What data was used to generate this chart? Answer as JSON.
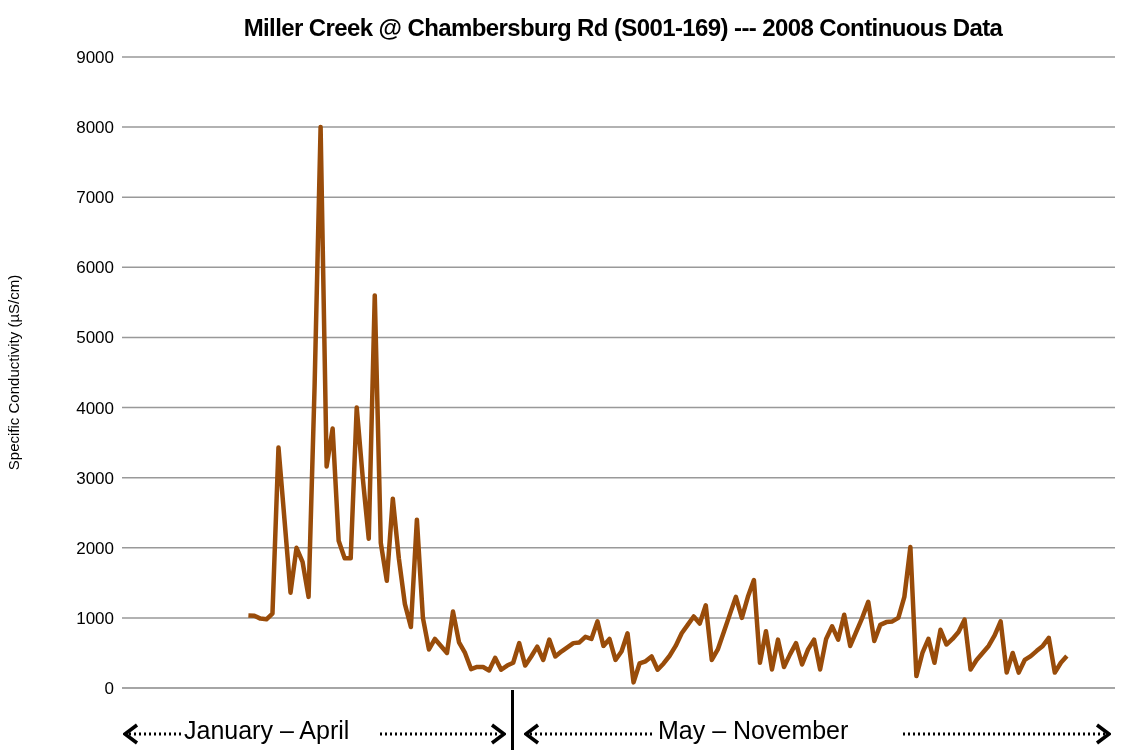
{
  "chart_data": {
    "type": "line",
    "title": "Miller Creek @ Chambersburg Rd (S001-169) --- 2008 Continuous Data",
    "ylabel": "Specific Conductivity (µS/cm)",
    "categories": [
      null,
      null,
      null,
      null,
      null,
      null,
      null,
      null,
      null,
      null,
      null,
      null,
      null,
      null,
      null,
      null,
      null,
      null,
      null,
      null,
      null,
      null,
      null,
      null,
      null,
      null,
      null,
      null,
      null,
      null,
      null,
      null,
      null,
      null,
      null,
      null,
      null,
      null,
      null,
      null,
      null,
      null,
      null,
      null,
      null,
      null,
      null,
      null,
      null,
      null,
      null,
      null,
      null,
      null,
      null,
      null,
      null,
      null,
      null,
      null,
      null,
      null,
      null,
      null,
      null,
      null,
      null,
      null,
      null,
      null,
      null,
      null,
      null,
      null,
      null,
      null,
      null,
      null,
      null,
      null,
      null,
      null,
      null,
      null,
      null,
      null,
      null,
      null,
      null,
      null,
      null,
      null,
      null,
      null,
      null,
      null,
      null,
      null,
      null,
      null,
      null,
      null,
      null,
      null,
      null,
      null,
      null,
      null,
      null,
      null,
      null,
      null,
      null,
      null,
      null,
      null,
      null,
      null,
      null,
      null,
      null,
      null,
      null,
      null,
      null,
      null,
      null,
      null,
      null,
      null,
      null,
      null,
      null,
      null,
      null,
      null,
      null,
      null,
      null,
      null,
      null,
      null,
      null,
      null,
      null,
      null,
      null,
      null,
      null,
      null,
      null,
      null,
      null,
      null,
      null,
      null,
      null,
      null,
      null,
      null,
      null,
      null,
      null,
      null,
      null,
      null
    ],
    "values": [
      null,
      null,
      null,
      null,
      null,
      null,
      null,
      null,
      null,
      null,
      null,
      null,
      null,
      null,
      null,
      null,
      null,
      null,
      null,
      null,
      null,
      1035,
      1030,
      990,
      980,
      1060,
      3430,
      2400,
      1360,
      2000,
      1800,
      1300,
      4300,
      8000,
      3160,
      3700,
      2100,
      1850,
      1850,
      4000,
      3000,
      2130,
      5600,
      2070,
      1530,
      2700,
      1850,
      1200,
      870,
      2400,
      1000,
      550,
      700,
      600,
      500,
      1090,
      650,
      500,
      270,
      300,
      300,
      250,
      430,
      260,
      320,
      360,
      640,
      320,
      450,
      590,
      400,
      690,
      450,
      520,
      580,
      640,
      650,
      730,
      700,
      950,
      600,
      700,
      400,
      520,
      780,
      80,
      350,
      380,
      450,
      260,
      350,
      460,
      600,
      780,
      900,
      1020,
      920,
      1180,
      400,
      550,
      800,
      1050,
      1300,
      1000,
      1300,
      1540,
      360,
      810,
      265,
      690,
      300,
      480,
      640,
      335,
      550,
      690,
      265,
      700,
      880,
      690,
      1045,
      600,
      800,
      1000,
      1230,
      670,
      900,
      940,
      950,
      1000,
      1300,
      2010,
      170,
      500,
      700,
      360,
      830,
      620,
      700,
      800,
      975,
      265,
      400,
      500,
      600,
      750,
      950,
      220,
      500,
      220,
      400,
      455,
      530,
      600,
      715,
      220,
      360,
      455,
      null,
      null,
      null,
      null,
      null,
      null,
      null,
      null
    ],
    "color": "#994c0a",
    "ylim": [
      0,
      9000
    ],
    "yticks": [
      0,
      1000,
      2000,
      3000,
      4000,
      5000,
      6000,
      7000,
      8000,
      9000
    ],
    "grid": "y",
    "marker": "none",
    "line_style": "solid",
    "annotations": [
      "January – April",
      "May – November"
    ]
  }
}
